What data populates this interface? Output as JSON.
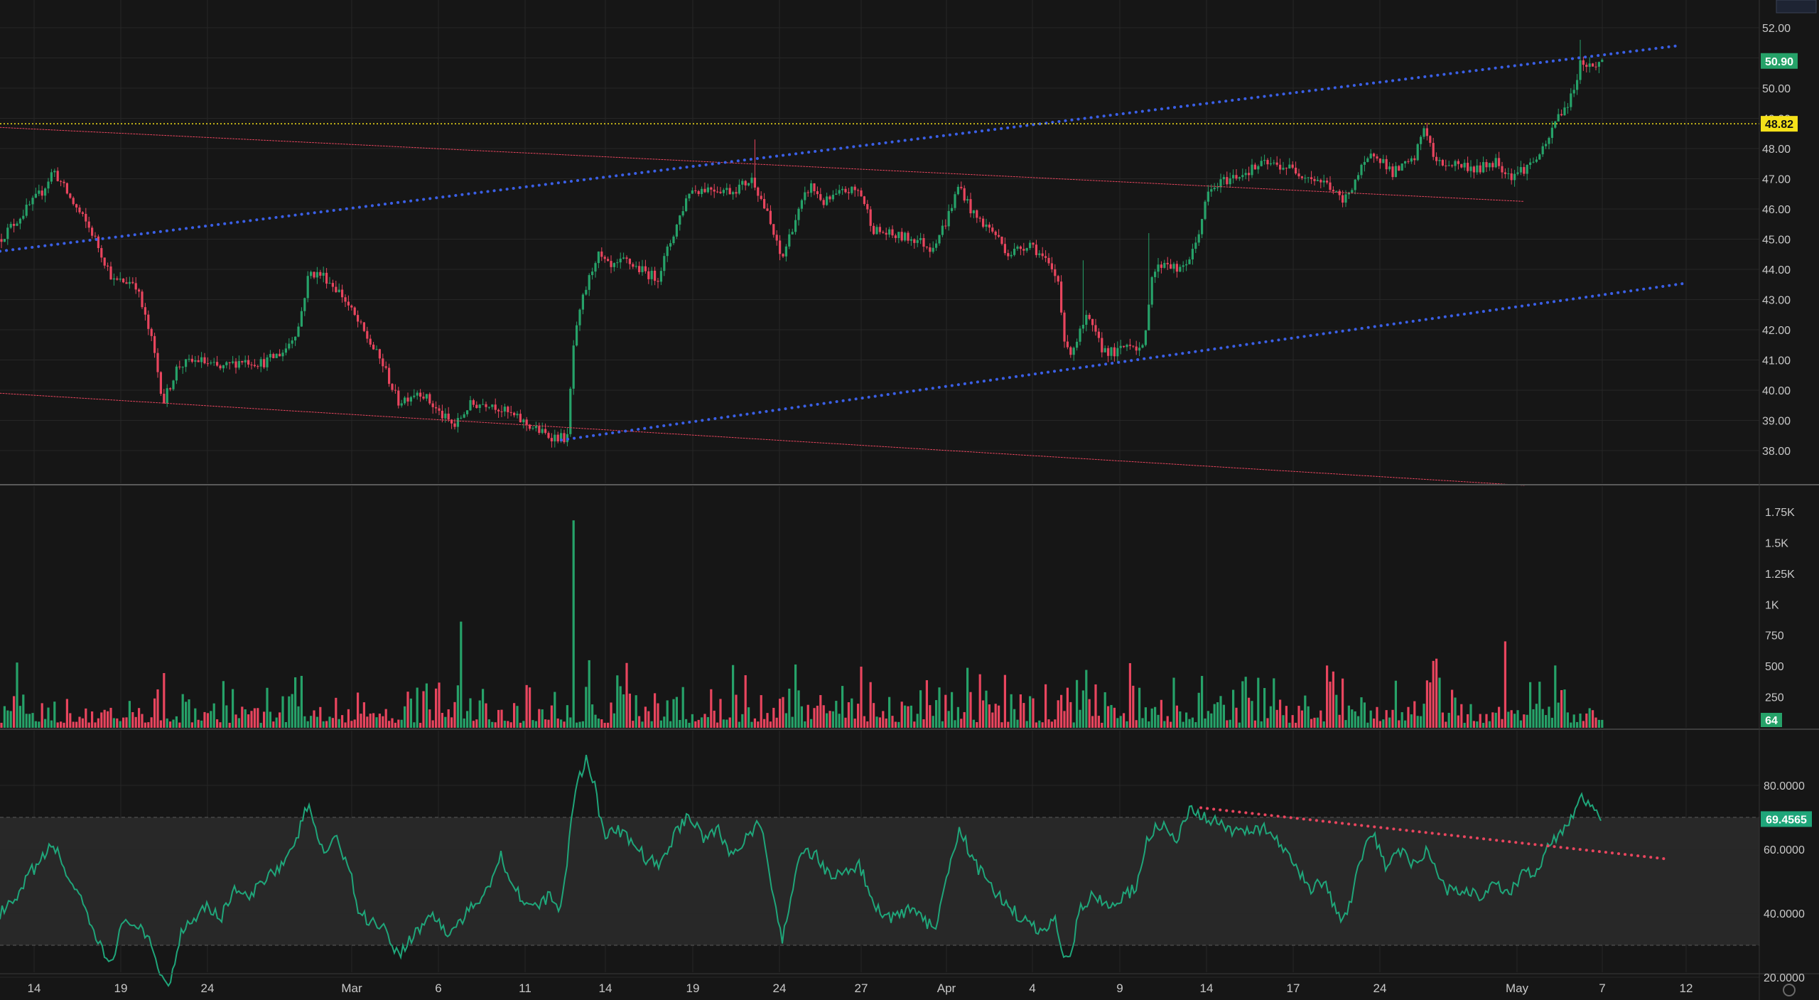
{
  "colors": {
    "background": "#161616",
    "grid": "#262626",
    "up": "#26a269",
    "down": "#e8455e",
    "channel_dots": "#3a5fe6",
    "red_lines": "#e8455e",
    "yellow_line": "#f5e11a",
    "rsi_line": "#1fa67a",
    "rsi_band": "#2a2a2a"
  },
  "chart_data": [
    {
      "type": "candlestick",
      "pane": "price",
      "ylim": [
        37.0,
        53.0
      ],
      "y_ticks": [
        "52.00",
        "51.00",
        "50.00",
        "49.00",
        "48.00",
        "47.00",
        "46.00",
        "45.00",
        "44.00",
        "43.00",
        "42.00",
        "41.00",
        "40.00",
        "39.00",
        "38.00"
      ],
      "last_price": "50.90",
      "horizontal_level": "48.82",
      "x_ticks": [
        "14",
        "19",
        "24",
        "Mar",
        "6",
        "11",
        "14",
        "19",
        "24",
        "27",
        "Apr",
        "4",
        "9",
        "14",
        "17",
        "24",
        "May",
        "7",
        "12"
      ],
      "close_path": [
        [
          0,
          45.0
        ],
        [
          30,
          45.8
        ],
        [
          60,
          46.6
        ],
        [
          75,
          47.3
        ],
        [
          100,
          46.3
        ],
        [
          130,
          45.2
        ],
        [
          160,
          43.6
        ],
        [
          190,
          43.6
        ],
        [
          215,
          41.5
        ],
        [
          230,
          39.6
        ],
        [
          250,
          40.8
        ],
        [
          280,
          41.0
        ],
        [
          310,
          40.7
        ],
        [
          340,
          41.0
        ],
        [
          370,
          40.9
        ],
        [
          400,
          41.3
        ],
        [
          420,
          42.1
        ],
        [
          435,
          43.9
        ],
        [
          455,
          43.8
        ],
        [
          480,
          43.2
        ],
        [
          500,
          42.4
        ],
        [
          520,
          41.6
        ],
        [
          540,
          40.8
        ],
        [
          560,
          39.6
        ],
        [
          590,
          40.0
        ],
        [
          620,
          39.2
        ],
        [
          640,
          38.8
        ],
        [
          660,
          39.5
        ],
        [
          690,
          39.6
        ],
        [
          710,
          39.3
        ],
        [
          740,
          38.9
        ],
        [
          770,
          38.5
        ],
        [
          800,
          38.4
        ],
        [
          805,
          41.2
        ],
        [
          820,
          43.0
        ],
        [
          840,
          44.5
        ],
        [
          860,
          44.0
        ],
        [
          880,
          44.3
        ],
        [
          900,
          44.0
        ],
        [
          925,
          43.7
        ],
        [
          945,
          45.0
        ],
        [
          970,
          46.6
        ],
        [
          1000,
          46.7
        ],
        [
          1030,
          46.6
        ],
        [
          1060,
          47.0
        ],
        [
          1080,
          45.8
        ],
        [
          1100,
          44.3
        ],
        [
          1115,
          45.4
        ],
        [
          1140,
          46.8
        ],
        [
          1160,
          46.2
        ],
        [
          1190,
          46.6
        ],
        [
          1210,
          46.6
        ],
        [
          1230,
          45.3
        ],
        [
          1260,
          45.1
        ],
        [
          1290,
          45.0
        ],
        [
          1310,
          44.7
        ],
        [
          1330,
          45.5
        ],
        [
          1350,
          46.8
        ],
        [
          1370,
          45.8
        ],
        [
          1400,
          45.2
        ],
        [
          1420,
          44.5
        ],
        [
          1450,
          44.9
        ],
        [
          1470,
          44.3
        ],
        [
          1490,
          43.6
        ],
        [
          1500,
          41.2
        ],
        [
          1510,
          41.4
        ],
        [
          1530,
          42.4
        ],
        [
          1550,
          41.4
        ],
        [
          1570,
          41.2
        ],
        [
          1590,
          41.6
        ],
        [
          1610,
          41.3
        ],
        [
          1620,
          43.8
        ],
        [
          1640,
          44.3
        ],
        [
          1660,
          43.9
        ],
        [
          1680,
          44.6
        ],
        [
          1700,
          46.5
        ],
        [
          1720,
          46.9
        ],
        [
          1750,
          47.2
        ],
        [
          1780,
          47.5
        ],
        [
          1810,
          47.4
        ],
        [
          1840,
          47.1
        ],
        [
          1870,
          46.8
        ],
        [
          1890,
          46.2
        ],
        [
          1910,
          47.1
        ],
        [
          1935,
          47.9
        ],
        [
          1960,
          47.2
        ],
        [
          1990,
          47.6
        ],
        [
          2005,
          48.8
        ],
        [
          2020,
          47.5
        ],
        [
          2050,
          47.5
        ],
        [
          2080,
          47.3
        ],
        [
          2105,
          47.6
        ],
        [
          2125,
          47.1
        ],
        [
          2150,
          47.4
        ],
        [
          2175,
          48.0
        ],
        [
          2190,
          49.0
        ],
        [
          2210,
          49.6
        ],
        [
          2225,
          50.9
        ],
        [
          2240,
          50.7
        ],
        [
          2255,
          50.9
        ]
      ],
      "volume_ylim": [
        0,
        1900
      ],
      "volume_ticks": [
        "1.75K",
        "1.5K",
        "1.25K",
        "1K",
        "750",
        "500",
        "250"
      ],
      "last_volume": "64",
      "volume_spikes": [
        [
          806,
          1680
        ],
        [
          650,
          860
        ],
        [
          1225,
          370
        ],
        [
          2120,
          700
        ],
        [
          960,
          330
        ],
        [
          2020,
          560
        ],
        [
          1690,
          420
        ]
      ]
    },
    {
      "type": "line",
      "pane": "rsi",
      "ylim": [
        12,
        98
      ],
      "y_ticks": [
        "80.0000",
        "60.0000",
        "40.0000",
        "20.0000"
      ],
      "last_value": "69.4565",
      "band": [
        30,
        70
      ],
      "series": [
        {
          "values": [
            [
              0,
              40
            ],
            [
              25,
              44
            ],
            [
              40,
              52
            ],
            [
              60,
              57
            ],
            [
              75,
              62
            ],
            [
              90,
              54
            ],
            [
              110,
              46
            ],
            [
              125,
              37
            ],
            [
              140,
              30
            ],
            [
              155,
              24
            ],
            [
              170,
              35
            ],
            [
              185,
              38
            ],
            [
              200,
              34
            ],
            [
              215,
              29
            ],
            [
              228,
              20
            ],
            [
              240,
              18
            ],
            [
              255,
              35
            ],
            [
              270,
              38
            ],
            [
              290,
              43
            ],
            [
              310,
              38
            ],
            [
              330,
              48
            ],
            [
              350,
              44
            ],
            [
              375,
              52
            ],
            [
              395,
              55
            ],
            [
              415,
              60
            ],
            [
              430,
              74
            ],
            [
              440,
              70
            ],
            [
              455,
              58
            ],
            [
              470,
              64
            ],
            [
              490,
              56
            ],
            [
              505,
              40
            ],
            [
              520,
              38
            ],
            [
              540,
              36
            ],
            [
              560,
              27
            ],
            [
              585,
              34
            ],
            [
              610,
              40
            ],
            [
              630,
              33
            ],
            [
              650,
              38
            ],
            [
              670,
              43
            ],
            [
              690,
              50
            ],
            [
              705,
              58
            ],
            [
              720,
              50
            ],
            [
              740,
              43
            ],
            [
              760,
              42
            ],
            [
              775,
              46
            ],
            [
              790,
              41
            ],
            [
              800,
              60
            ],
            [
              810,
              80
            ],
            [
              825,
              88
            ],
            [
              835,
              82
            ],
            [
              850,
              64
            ],
            [
              870,
              66
            ],
            [
              890,
              62
            ],
            [
              910,
              57
            ],
            [
              930,
              55
            ],
            [
              950,
              65
            ],
            [
              970,
              71
            ],
            [
              990,
              64
            ],
            [
              1010,
              66
            ],
            [
              1030,
              58
            ],
            [
              1050,
              64
            ],
            [
              1070,
              68
            ],
            [
              1085,
              50
            ],
            [
              1100,
              31
            ],
            [
              1115,
              48
            ],
            [
              1130,
              60
            ],
            [
              1150,
              58
            ],
            [
              1170,
              51
            ],
            [
              1190,
              53
            ],
            [
              1210,
              55
            ],
            [
              1230,
              42
            ],
            [
              1255,
              38
            ],
            [
              1275,
              41
            ],
            [
              1295,
              39
            ],
            [
              1315,
              35
            ],
            [
              1335,
              52
            ],
            [
              1350,
              67
            ],
            [
              1370,
              56
            ],
            [
              1390,
              50
            ],
            [
              1410,
              44
            ],
            [
              1430,
              40
            ],
            [
              1450,
              36
            ],
            [
              1470,
              34
            ],
            [
              1485,
              40
            ],
            [
              1495,
              27
            ],
            [
              1505,
              25
            ],
            [
              1520,
              42
            ],
            [
              1540,
              46
            ],
            [
              1560,
              42
            ],
            [
              1580,
              45
            ],
            [
              1600,
              48
            ],
            [
              1615,
              64
            ],
            [
              1635,
              68
            ],
            [
              1655,
              62
            ],
            [
              1675,
              72
            ],
            [
              1695,
              70
            ],
            [
              1715,
              68
            ],
            [
              1735,
              65
            ],
            [
              1760,
              67
            ],
            [
              1785,
              66
            ],
            [
              1805,
              60
            ],
            [
              1825,
              54
            ],
            [
              1845,
              48
            ],
            [
              1865,
              50
            ],
            [
              1880,
              40
            ],
            [
              1895,
              38
            ],
            [
              1910,
              52
            ],
            [
              1930,
              66
            ],
            [
              1950,
              55
            ],
            [
              1970,
              60
            ],
            [
              1990,
              55
            ],
            [
              2010,
              60
            ],
            [
              2025,
              50
            ],
            [
              2045,
              46
            ],
            [
              2065,
              48
            ],
            [
              2085,
              45
            ],
            [
              2105,
              50
            ],
            [
              2125,
              46
            ],
            [
              2145,
              53
            ],
            [
              2165,
              52
            ],
            [
              2180,
              62
            ],
            [
              2200,
              66
            ],
            [
              2215,
              72
            ],
            [
              2225,
              76
            ],
            [
              2240,
              73
            ],
            [
              2255,
              69.5
            ]
          ]
        }
      ]
    }
  ],
  "drawings": {
    "upper_channel": [
      [
        0,
        44.6
      ],
      [
        2360,
        51.4
      ]
    ],
    "lower_channel": [
      [
        790,
        38.35
      ],
      [
        2375,
        43.55
      ]
    ],
    "red_top": [
      [
        0,
        48.7
      ],
      [
        2145,
        46.25
      ]
    ],
    "red_bottom": [
      [
        0,
        39.9
      ],
      [
        2145,
        36.85
      ]
    ],
    "rsi_trend": [
      [
        1690,
        73
      ],
      [
        2345,
        57
      ]
    ]
  }
}
